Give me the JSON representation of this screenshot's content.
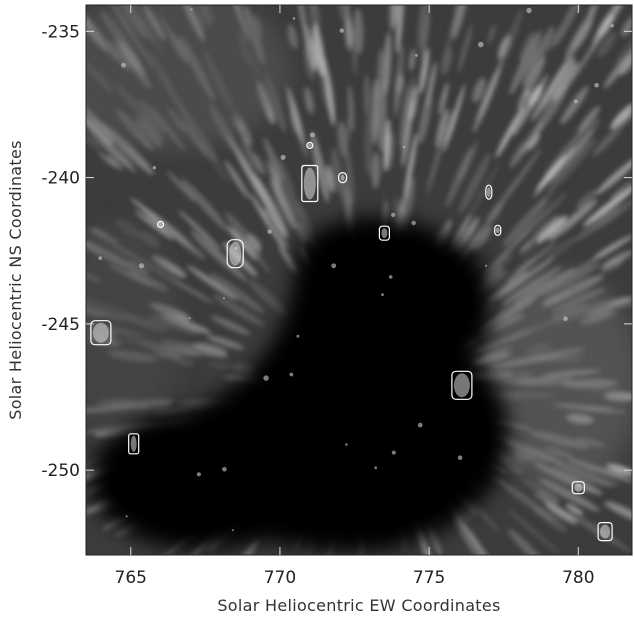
{
  "figure": {
    "xlabel": "Solar Heliocentric EW Coordinates",
    "ylabel": "Solar Heliocentric NS Coordinates",
    "xticks": [
      765,
      770,
      775,
      780
    ],
    "yticks": [
      -235,
      -240,
      -245,
      -250
    ],
    "xlim": [
      763.5,
      781.8
    ],
    "ylim": [
      -252.9,
      -234.1
    ],
    "image": "grayscale sunspot image: dark umbra with bright filamentary penumbra",
    "contour_color": "#ffffff",
    "contours": [
      {
        "x": 771.0,
        "y": -240.2
      },
      {
        "x": 772.1,
        "y": -240.0
      },
      {
        "x": 773.5,
        "y": -241.9
      },
      {
        "x": 777.0,
        "y": -240.5
      },
      {
        "x": 777.3,
        "y": -241.8
      },
      {
        "x": 766.0,
        "y": -241.6
      },
      {
        "x": 768.5,
        "y": -242.6
      },
      {
        "x": 771.0,
        "y": -238.9
      },
      {
        "x": 764.0,
        "y": -245.3
      },
      {
        "x": 765.1,
        "y": -249.1
      },
      {
        "x": 776.1,
        "y": -247.1
      },
      {
        "x": 780.0,
        "y": -250.6
      },
      {
        "x": 780.9,
        "y": -252.1
      }
    ]
  }
}
